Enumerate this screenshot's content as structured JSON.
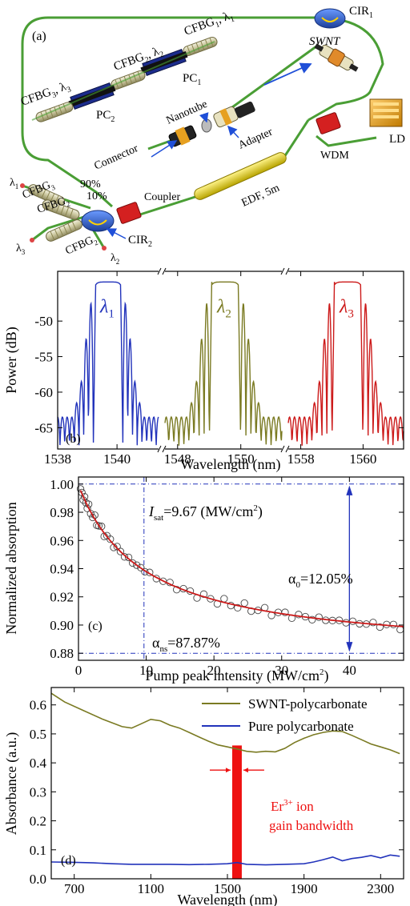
{
  "panel_a": {
    "tag": "(a)",
    "labels": {
      "cir1": "CIR",
      "cir1_sub": "1",
      "swnt": "SWNT",
      "ld": "LD",
      "wdm": "WDM",
      "edf": "EDF, 5m",
      "coupler": "Coupler",
      "pct90": "90%",
      "pct10": "10%",
      "cir2": "CIR",
      "cir2_sub": "2",
      "cfbg1_top": "CFBG",
      "cfbg1_top_sub": "1",
      "cfbg1_top_lam": ", λ",
      "cfbg1_top_lamsub": "1",
      "cfbg2_top": "CFBG",
      "cfbg2_top_sub": "2",
      "cfbg2_top_lam": ", λ",
      "cfbg2_top_lamsub": "2",
      "cfbg3_top": "CFBG",
      "cfbg3_top_sub": "3",
      "cfbg3_top_lam": ", λ",
      "cfbg3_top_lamsub": "3",
      "pc1": "PC",
      "pc1_sub": "1",
      "pc2": "PC",
      "pc2_sub": "2",
      "nanotube": "Nanotube",
      "connector": "Connector",
      "adapter": "Adapter",
      "lam1": "λ",
      "lam1_sub": "1",
      "lam2": "λ",
      "lam2_sub": "2",
      "lam3": "λ",
      "lam3_sub": "3",
      "cfbg3_low": "CFBG",
      "cfbg3_low_sub": "3",
      "cfbg2_low": "CFBG",
      "cfbg2_low_sub": "2",
      "cfbg2b_low": "CFBG",
      "cfbg2b_low_sub": "2"
    },
    "colors": {
      "fiber": "#4a9e35",
      "cir": "#2a5fbf",
      "pc": "#1c2c8c",
      "red": "#d42020",
      "edf": "#e4d21a",
      "ld": "#e8a020"
    }
  },
  "chart_data": [
    {
      "id": "b",
      "type": "line",
      "tag": "(b)",
      "xlabel": "Wavelength (nm)",
      "ylabel": "Power (dB)",
      "ylim": [
        -68,
        -43
      ],
      "yticks": [
        -65,
        -60,
        -55,
        -50
      ],
      "broken_x_axis": true,
      "segments": [
        {
          "xlim": [
            1538,
            1541.4
          ],
          "ticks": [
            1538,
            1540
          ],
          "color": "#2233bb",
          "label": "λ",
          "label_sub": "1",
          "center": 1539.7
        },
        {
          "xlim": [
            1547.6,
            1551.3
          ],
          "ticks": [
            1548,
            1550
          ],
          "color": "#7a7a22",
          "label": "λ",
          "label_sub": "2",
          "center": 1549.5
        },
        {
          "xlim": [
            1557.6,
            1561.3
          ],
          "ticks": [
            1558,
            1560
          ],
          "color": "#cc1a1a",
          "label": "λ",
          "label_sub": "3",
          "center": 1559.5
        }
      ],
      "spectrum_shape": {
        "top_level": -44.5,
        "flat_half_width": 0.42,
        "side_lobe_levels": [
          -47.5,
          -52.5,
          -58.5,
          -61.5,
          -63.5
        ],
        "side_lobe_spacing": 0.16,
        "floor": -68
      }
    },
    {
      "id": "c",
      "type": "scatter",
      "tag": "(c)",
      "xlabel": "Pump peak intensity (MW/cm",
      "xlabel_sup": "2",
      "xlabel_end": ")",
      "ylabel": "Normalized absorption",
      "xlim": [
        0,
        48
      ],
      "ylim": [
        0.875,
        1.005
      ],
      "xticks": [
        0,
        10,
        20,
        30,
        40
      ],
      "yticks": [
        0.88,
        0.9,
        0.92,
        0.94,
        0.96,
        0.98,
        1.0
      ],
      "fit": {
        "alpha0": 0.1205,
        "alpha_ns": 0.8787,
        "I_sat": 9.67,
        "color": "#cc1a1a"
      },
      "points_x": [
        0.3,
        0.5,
        0.7,
        0.9,
        1.1,
        1.3,
        1.5,
        1.8,
        2.1,
        2.4,
        2.7,
        3.0,
        3.4,
        3.8,
        4.2,
        4.7,
        5.2,
        5.7,
        6.2,
        6.8,
        7.4,
        8.0,
        8.6,
        9.2,
        9.8,
        10.5,
        11.5,
        12.5,
        13.5,
        14.5,
        15.5,
        16.5,
        17.5,
        18.5,
        19.5,
        20.5,
        21.5,
        22.5,
        23.5,
        24.5,
        25.5,
        26.5,
        27.5,
        28.5,
        29.5,
        30.5,
        31.5,
        32.5,
        33.5,
        34.5,
        35.5,
        36.5,
        37.5,
        38.5,
        39.5,
        40.5,
        41.5,
        42.5,
        43.5,
        44.5,
        45.5,
        46.5,
        47.5
      ],
      "annotations": {
        "isat_sym": "I",
        "isat_sub": "sat",
        "isat_text": "=9.67 (MW/cm",
        "isat_sup": "2",
        "isat_end": ")",
        "alpha0_sym": "α",
        "alpha0_sub": "0",
        "alpha0_text": "=12.05%",
        "alphans_sym": "α",
        "alphans_sub": "ns",
        "alphans_text": "=87.87%"
      },
      "guide_color": "#2233bb"
    },
    {
      "id": "d",
      "type": "line",
      "tag": "(d)",
      "xlabel": "Wavelength (nm)",
      "ylabel": "Absorbance (a.u.)",
      "xlim": [
        580,
        2420
      ],
      "ylim": [
        0,
        0.66
      ],
      "xticks": [
        700,
        1100,
        1500,
        1900,
        2300
      ],
      "yticks": [
        0.0,
        0.1,
        0.2,
        0.3,
        0.4,
        0.5,
        0.6
      ],
      "series": [
        {
          "name": "SWNT-polycarbonate",
          "color": "#7a7a22",
          "x": [
            580,
            650,
            750,
            850,
            950,
            1000,
            1050,
            1100,
            1150,
            1200,
            1250,
            1300,
            1350,
            1400,
            1450,
            1500,
            1550,
            1600,
            1650,
            1700,
            1750,
            1800,
            1850,
            1900,
            1950,
            2000,
            2050,
            2100,
            2150,
            2200,
            2250,
            2300,
            2350,
            2400
          ],
          "y": [
            0.64,
            0.61,
            0.58,
            0.55,
            0.525,
            0.52,
            0.535,
            0.55,
            0.545,
            0.53,
            0.52,
            0.505,
            0.49,
            0.475,
            0.462,
            0.455,
            0.448,
            0.44,
            0.437,
            0.44,
            0.438,
            0.45,
            0.47,
            0.485,
            0.497,
            0.505,
            0.51,
            0.508,
            0.495,
            0.48,
            0.465,
            0.455,
            0.445,
            0.432
          ]
        },
        {
          "name": "Pure polycarbonate",
          "color": "#2233bb",
          "x": [
            580,
            700,
            800,
            900,
            1000,
            1100,
            1200,
            1300,
            1400,
            1500,
            1550,
            1600,
            1700,
            1800,
            1900,
            1950,
            2000,
            2050,
            2100,
            2150,
            2200,
            2250,
            2300,
            2350,
            2400
          ],
          "y": [
            0.058,
            0.057,
            0.055,
            0.052,
            0.05,
            0.05,
            0.05,
            0.049,
            0.05,
            0.052,
            0.056,
            0.05,
            0.048,
            0.05,
            0.052,
            0.058,
            0.066,
            0.075,
            0.062,
            0.07,
            0.074,
            0.08,
            0.072,
            0.082,
            0.078
          ]
        }
      ],
      "band": {
        "x0": 1525,
        "x1": 1575,
        "ytop": 0.46,
        "color": "#ee1111"
      },
      "annotation": {
        "line1_a": "Er",
        "line1_sup": "3+",
        "line1_b": " ion",
        "line2": "gain bandwidth",
        "color": "#ee1111"
      }
    }
  ]
}
